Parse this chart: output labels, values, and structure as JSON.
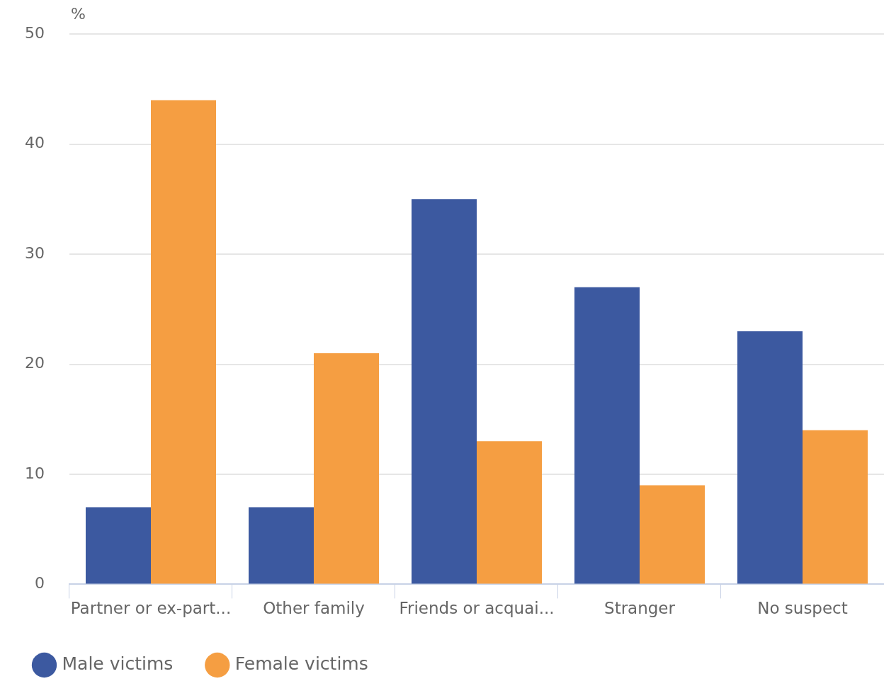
{
  "chart_data": {
    "type": "bar",
    "ylabel": "%",
    "categories": [
      "Partner or ex-part...",
      "Other family",
      "Friends or acquai...",
      "Stranger",
      "No suspect"
    ],
    "series": [
      {
        "name": "Male victims",
        "color": "#3c59a0",
        "values": [
          7,
          7,
          35,
          27,
          23
        ]
      },
      {
        "name": "Female victims",
        "color": "#f59e42",
        "values": [
          44,
          21,
          13,
          9,
          14
        ]
      }
    ],
    "ylim": [
      0,
      50
    ],
    "yticks": [
      0,
      10,
      20,
      30,
      40,
      50
    ],
    "grid": "y",
    "legend": "bottom left",
    "marker": "circle"
  }
}
